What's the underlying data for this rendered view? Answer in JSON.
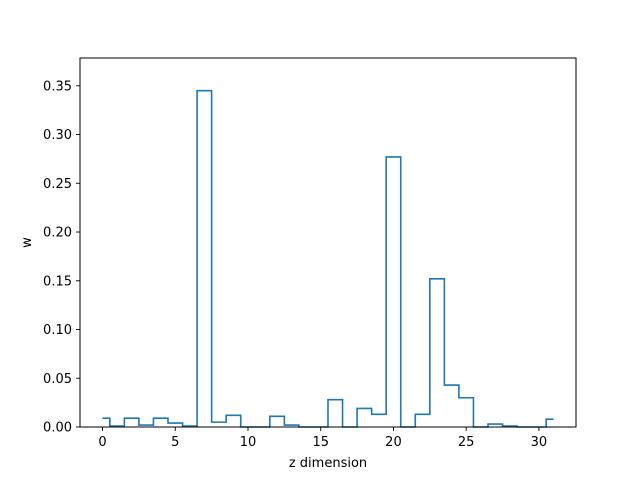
{
  "chart_data": {
    "type": "step",
    "xlabel": "z dimension",
    "ylabel": "w",
    "xlim": [
      -1.55,
      32.55
    ],
    "ylim": [
      0,
      0.3785
    ],
    "xticks": [
      0,
      5,
      10,
      15,
      20,
      25,
      30
    ],
    "yticks": [
      0.0,
      0.05,
      0.1,
      0.15,
      0.2,
      0.25,
      0.3,
      0.35
    ],
    "grid": false,
    "legend": "none",
    "series": [
      {
        "color": "#1f77b4",
        "x": [
          0,
          1,
          2,
          3,
          4,
          5,
          6,
          7,
          8,
          9,
          10,
          11,
          12,
          13,
          14,
          15,
          16,
          17,
          18,
          19,
          20,
          21,
          22,
          23,
          24,
          25,
          26,
          27,
          28,
          29,
          30,
          31
        ],
        "values": [
          0.009,
          0.001,
          0.009,
          0.002,
          0.009,
          0.004,
          0.001,
          0.345,
          0.005,
          0.012,
          0.0,
          0.0,
          0.011,
          0.002,
          0.0,
          0.0,
          0.028,
          0.0,
          0.019,
          0.013,
          0.277,
          0.0,
          0.013,
          0.152,
          0.043,
          0.03,
          0.0,
          0.003,
          0.001,
          0.0,
          0.0,
          0.008
        ]
      }
    ]
  }
}
